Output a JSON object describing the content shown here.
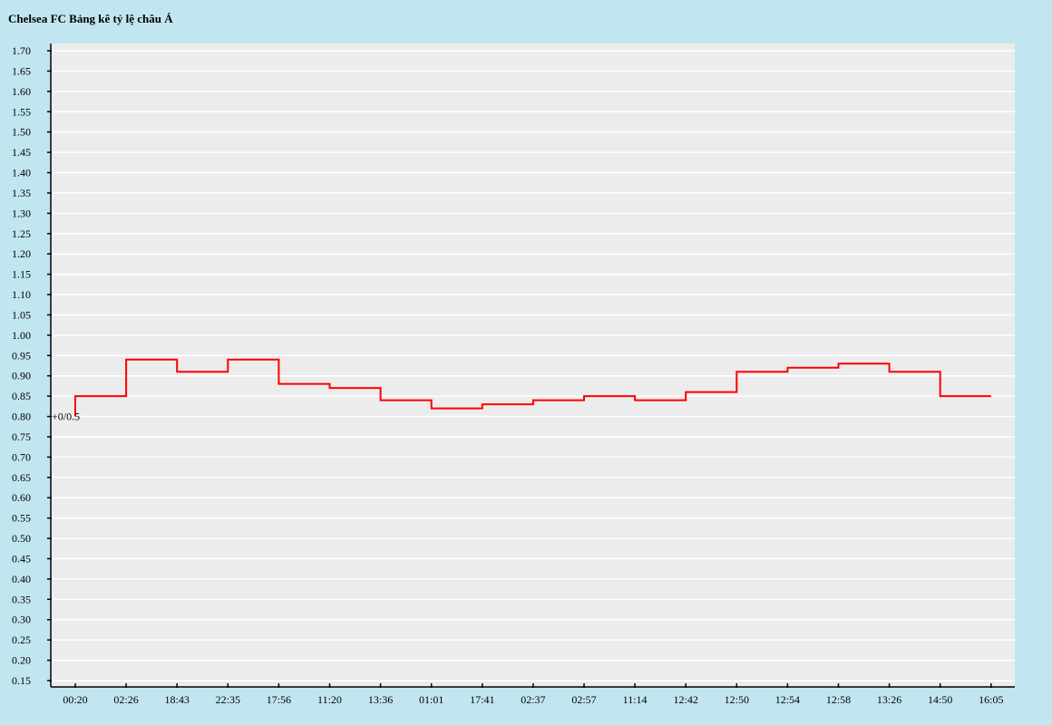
{
  "chart_data": {
    "type": "line",
    "step": true,
    "title": "Chelsea FC Bảng kê tỷ lệ châu Á",
    "x": [
      "00:20",
      "02:26",
      "18:43",
      "22:35",
      "17:56",
      "11:20",
      "13:36",
      "01:01",
      "17:41",
      "02:37",
      "02:57",
      "11:14",
      "12:42",
      "12:50",
      "12:54",
      "12:58",
      "13:26",
      "14:50",
      "16:05"
    ],
    "y_ticks": [
      "0.15",
      "0.20",
      "0.25",
      "0.30",
      "0.35",
      "0.40",
      "0.45",
      "0.50",
      "0.55",
      "0.60",
      "0.65",
      "0.70",
      "0.75",
      "0.80",
      "0.85",
      "0.90",
      "0.95",
      "1.00",
      "1.05",
      "1.10",
      "1.15",
      "1.20",
      "1.25",
      "1.30",
      "1.35",
      "1.40",
      "1.45",
      "1.50",
      "1.55",
      "1.60",
      "1.65",
      "1.70"
    ],
    "ylim": [
      0.15,
      1.72
    ],
    "grid": true,
    "series": [
      {
        "values": [
          0.85,
          0.94,
          0.91,
          0.94,
          0.88,
          0.87,
          0.84,
          0.82,
          0.83,
          0.84,
          0.85,
          0.84,
          0.86,
          0.91,
          0.92,
          0.93,
          0.91,
          0.85,
          0.85
        ],
        "color": "#ff0000"
      }
    ],
    "annotations": [
      {
        "text": "+0/0.5",
        "x_index": 0,
        "y": 0.8
      }
    ]
  },
  "colors": {
    "page_bg": "#c2e6f0",
    "plot_bg": "#ececec",
    "grid": "#ffffff",
    "line": "#ff0000"
  }
}
